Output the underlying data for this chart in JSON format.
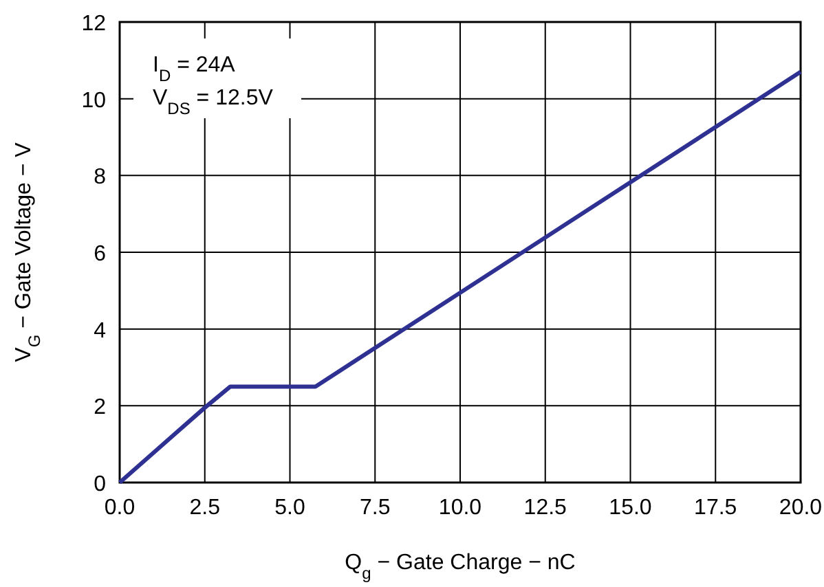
{
  "chart_data": {
    "type": "line",
    "xlabel": "Q$_{g}$ − Gate Charge − nC",
    "ylabel": "V$_{G}$ − Gate Voltage − V",
    "annotations": [
      "I$_{D}$ = 24A",
      "V$_{DS}$ = 12.5V"
    ],
    "x": [
      0,
      2.5,
      3.25,
      5.75,
      20
    ],
    "series": [
      {
        "color": "#2e3192",
        "values": [
          0,
          1.95,
          2.5,
          2.5,
          10.7
        ]
      }
    ],
    "xlim": [
      0,
      20
    ],
    "xticks": [
      {
        "value": 0,
        "label": "0.0"
      },
      {
        "value": 2.5,
        "label": "2.5"
      },
      {
        "value": 5,
        "label": "5.0"
      },
      {
        "value": 7.5,
        "label": "7.5"
      },
      {
        "value": 10,
        "label": "10.0"
      },
      {
        "value": 12.5,
        "label": "12.5"
      },
      {
        "value": 15,
        "label": "15.0"
      },
      {
        "value": 17.5,
        "label": "17.5"
      },
      {
        "value": 20,
        "label": "20.0"
      }
    ],
    "ylim": [
      0,
      12
    ],
    "yticks": [
      0,
      2,
      4,
      6,
      8,
      10,
      12
    ],
    "grid": true,
    "marker": "none",
    "line_style": "solid"
  }
}
